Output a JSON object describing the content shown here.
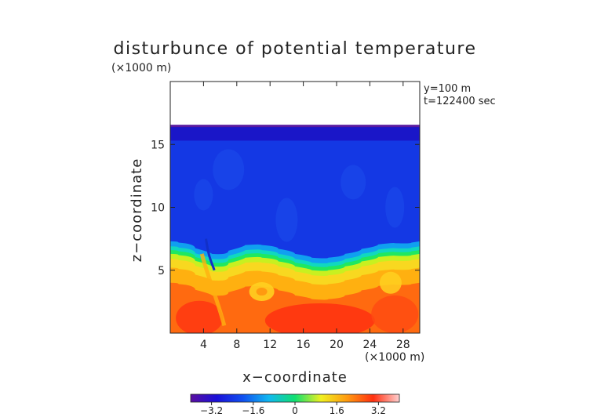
{
  "chart_data": {
    "type": "heatmap",
    "title": "disturbunce of potential temperature",
    "xlabel": "x−coordinate",
    "ylabel": "z−coordinate",
    "x_unit": "(×1000 m)",
    "y_unit": "(×1000 m)",
    "info_lines": [
      "y=100 m",
      "t=122400 sec"
    ],
    "xlim": [
      0,
      30
    ],
    "ylim": [
      0,
      20
    ],
    "x_ticks": [
      4,
      8,
      12,
      16,
      20,
      24,
      28
    ],
    "y_ticks": [
      5,
      10,
      15
    ],
    "colorbar": {
      "range": [
        -4.0,
        4.0
      ],
      "ticks": [
        -3.2,
        -1.6,
        0,
        1.6,
        3.2
      ],
      "tick_labels": [
        "−3.2",
        "−1.6",
        "0",
        "1.6",
        "3.2"
      ],
      "colors": [
        "#5a0fa0",
        "#1a10d8",
        "#1050f0",
        "#10b8f0",
        "#10e070",
        "#f0f020",
        "#ff9a10",
        "#ff3010",
        "#ffd0d0"
      ]
    },
    "field": {
      "description_of_values": "domain top near z=16.5, cold (negative) above z~6, warm (positive) below",
      "domain_top": 16.5,
      "interface_z": [
        [
          0,
          6.2
        ],
        [
          2,
          6.0
        ],
        [
          4,
          5.3
        ],
        [
          6,
          5.1
        ],
        [
          8,
          5.8
        ],
        [
          10,
          6.0
        ],
        [
          12,
          5.8
        ],
        [
          14,
          5.4
        ],
        [
          16,
          5.0
        ],
        [
          18,
          4.8
        ],
        [
          20,
          5.0
        ],
        [
          22,
          5.4
        ],
        [
          24,
          5.8
        ],
        [
          26,
          6.1
        ],
        [
          28,
          6.0
        ],
        [
          30,
          6.2
        ]
      ],
      "upper_value": -2.6,
      "lower_value": 3.0
    }
  }
}
